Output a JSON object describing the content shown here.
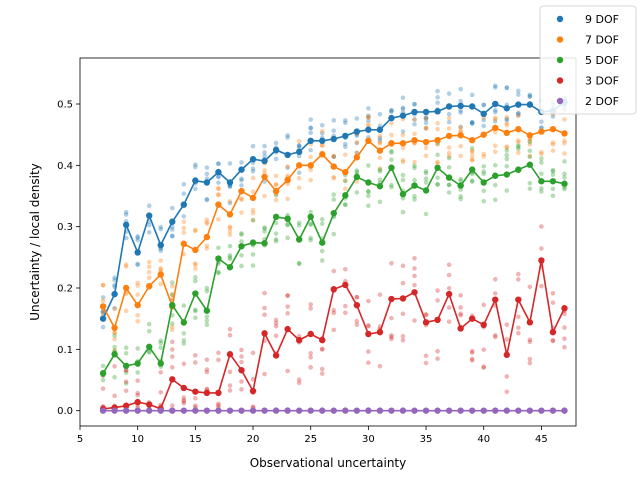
{
  "chart_data": {
    "type": "line",
    "xlabel": "Observational uncertainty",
    "ylabel": "Uncertainty / local density",
    "xlim": [
      5,
      48
    ],
    "ylim": [
      -0.025,
      0.575
    ],
    "xticks": [
      5,
      10,
      15,
      20,
      25,
      30,
      35,
      40,
      45
    ],
    "yticks": [
      0.0,
      0.1,
      0.2,
      0.3,
      0.4,
      0.5
    ],
    "ytick_labels": [
      "0.0",
      "0.1",
      "0.2",
      "0.3",
      "0.4",
      "0.5"
    ],
    "legend_position": "top-right",
    "x": [
      7,
      8,
      9,
      10,
      11,
      12,
      13,
      14,
      15,
      16,
      17,
      18,
      19,
      20,
      21,
      22,
      23,
      24,
      25,
      26,
      27,
      28,
      29,
      30,
      31,
      32,
      33,
      34,
      35,
      36,
      37,
      38,
      39,
      40,
      41,
      42,
      43,
      44,
      45,
      46,
      47
    ],
    "series": [
      {
        "name": "9 DOF",
        "color": "#1f77b4",
        "values": [
          0.15,
          0.19,
          0.303,
          0.258,
          0.318,
          0.27,
          0.308,
          0.336,
          0.375,
          0.372,
          0.389,
          0.372,
          0.393,
          0.41,
          0.407,
          0.425,
          0.417,
          0.422,
          0.44,
          0.44,
          0.443,
          0.448,
          0.455,
          0.458,
          0.458,
          0.477,
          0.481,
          0.487,
          0.487,
          0.488,
          0.496,
          0.497,
          0.496,
          0.484,
          0.5,
          0.493,
          0.499,
          0.499,
          0.487,
          0.489,
          0.503
        ],
        "spread": 0.035
      },
      {
        "name": "7 DOF",
        "color": "#ff7f0e",
        "values": [
          0.17,
          0.135,
          0.2,
          0.172,
          0.203,
          0.222,
          0.17,
          0.272,
          0.262,
          0.283,
          0.336,
          0.32,
          0.358,
          0.347,
          0.381,
          0.358,
          0.376,
          0.4,
          0.4,
          0.418,
          0.398,
          0.389,
          0.413,
          0.44,
          0.424,
          0.436,
          0.436,
          0.441,
          0.438,
          0.441,
          0.448,
          0.449,
          0.441,
          0.45,
          0.461,
          0.453,
          0.459,
          0.449,
          0.455,
          0.459,
          0.452
        ],
        "spread": 0.04
      },
      {
        "name": "5 DOF",
        "color": "#2ca02c",
        "values": [
          0.061,
          0.092,
          0.073,
          0.077,
          0.104,
          0.077,
          0.172,
          0.144,
          0.191,
          0.163,
          0.248,
          0.234,
          0.268,
          0.274,
          0.273,
          0.316,
          0.313,
          0.279,
          0.316,
          0.274,
          0.322,
          0.351,
          0.381,
          0.372,
          0.366,
          0.396,
          0.353,
          0.367,
          0.359,
          0.396,
          0.38,
          0.367,
          0.393,
          0.372,
          0.383,
          0.385,
          0.393,
          0.401,
          0.374,
          0.374,
          0.37
        ],
        "spread": 0.04
      },
      {
        "name": "3 DOF",
        "color": "#d62728",
        "values": [
          0.003,
          0.005,
          0.008,
          0.014,
          0.01,
          0.003,
          0.051,
          0.037,
          0.031,
          0.029,
          0.029,
          0.092,
          0.066,
          0.032,
          0.126,
          0.09,
          0.133,
          0.115,
          0.125,
          0.115,
          0.198,
          0.205,
          0.172,
          0.125,
          0.128,
          0.182,
          0.183,
          0.193,
          0.144,
          0.148,
          0.19,
          0.134,
          0.15,
          0.14,
          0.181,
          0.091,
          0.181,
          0.144,
          0.245,
          0.128,
          0.167
        ],
        "spread": 0.07
      },
      {
        "name": "2 DOF",
        "color": "#9467bd",
        "values": [
          0.0,
          0.0,
          0.0,
          0.0,
          0.0,
          0.0,
          0.0,
          0.0,
          0.0,
          0.0,
          0.0,
          0.0,
          0.0,
          0.0,
          0.0,
          0.0,
          0.0,
          0.0,
          0.0,
          0.0,
          0.0,
          0.0,
          0.0,
          0.0,
          0.0,
          0.0,
          0.0,
          0.0,
          0.0,
          0.0,
          0.0,
          0.0,
          0.0,
          0.0,
          0.0,
          0.0,
          0.0,
          0.0,
          0.0,
          0.0,
          0.0
        ],
        "spread": 0.002
      }
    ]
  }
}
